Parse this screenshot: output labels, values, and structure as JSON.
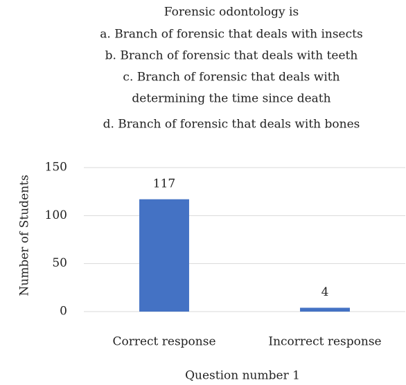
{
  "chart_data": {
    "type": "bar",
    "title": [
      "Forensic odontology is",
      "a. Branch of forensic that deals with insects",
      "b. Branch of forensic that deals with teeth",
      "c. Branch of forensic that deals with",
      "determining the time since death",
      "d. Branch of forensic that deals with bones"
    ],
    "x_label": "Question number 1",
    "y_label": "Number of Students",
    "categories": [
      "Correct response",
      "Incorrect response"
    ],
    "values": [
      117,
      4
    ],
    "color": "#4472c4",
    "ylim": [
      0,
      150
    ],
    "yticks": [
      0,
      50,
      100,
      150
    ],
    "grid": true,
    "data_labels": true
  }
}
